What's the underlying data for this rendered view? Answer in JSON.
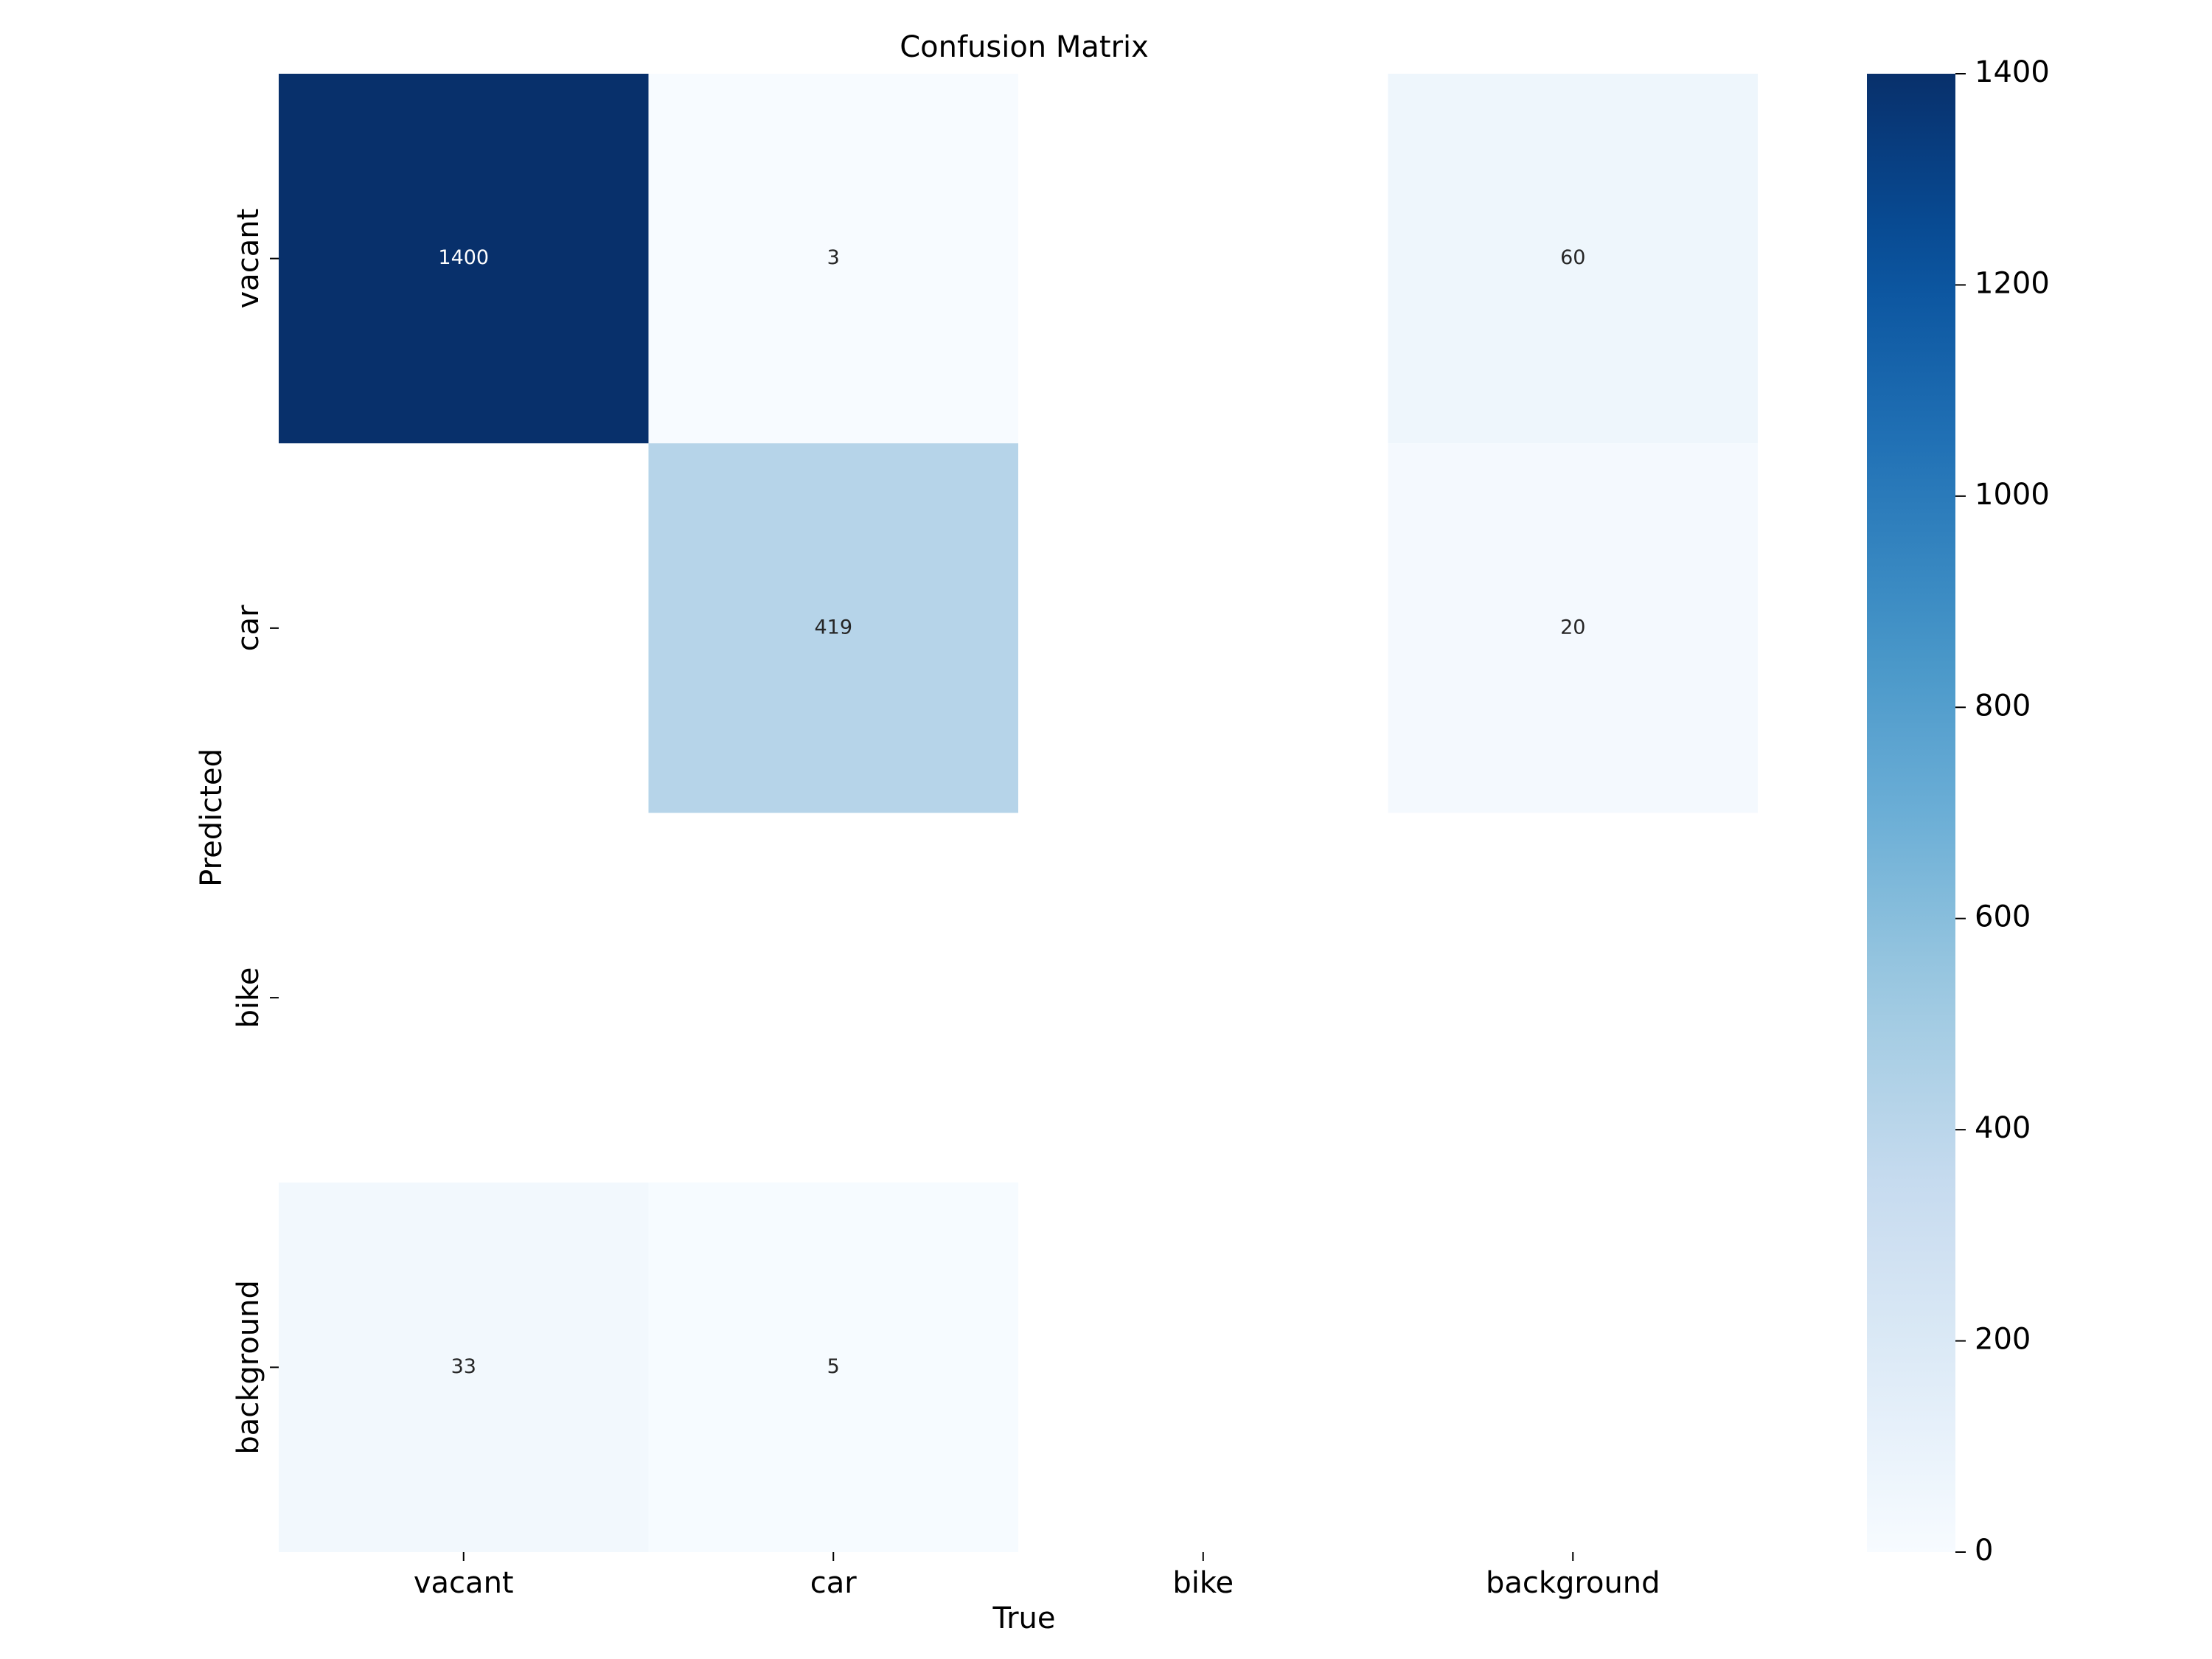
{
  "chart_data": {
    "type": "heatmap",
    "title": "Confusion Matrix",
    "xlabel": "True",
    "ylabel": "Predicted",
    "x_categories": [
      "vacant",
      "car",
      "bike",
      "background"
    ],
    "y_categories": [
      "vacant",
      "car",
      "bike",
      "background"
    ],
    "matrix": [
      [
        1400,
        3,
        null,
        60
      ],
      [
        null,
        419,
        null,
        20
      ],
      [
        null,
        null,
        null,
        null
      ],
      [
        33,
        5,
        null,
        null
      ]
    ],
    "colorbar": {
      "range": [
        0,
        1400
      ],
      "ticks": [
        0,
        200,
        400,
        600,
        800,
        1000,
        1200,
        1400
      ],
      "colormap": "Blues"
    },
    "grid": false
  }
}
